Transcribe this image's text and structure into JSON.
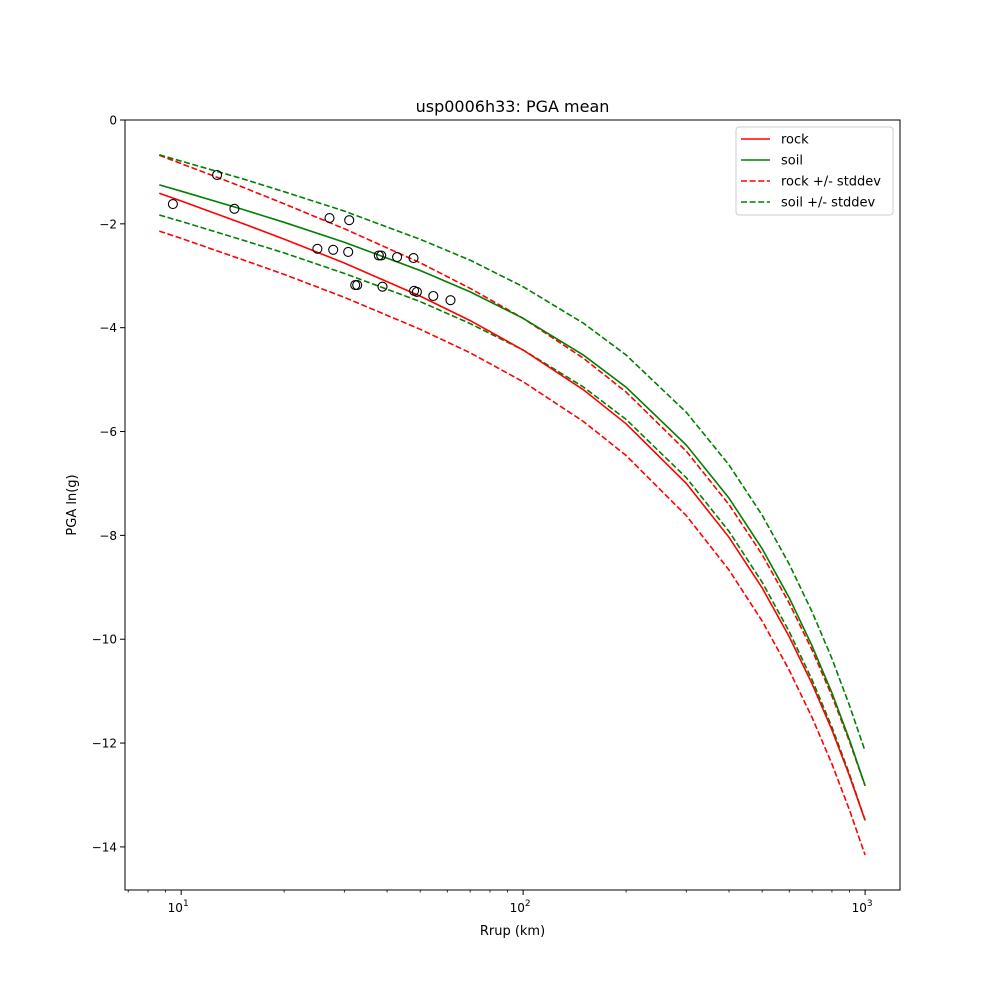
{
  "chart_data": {
    "type": "line",
    "title": "usp0006h33: PGA mean",
    "xlabel": "Rrup (km)",
    "ylabel": "PGA ln(g)",
    "xscale": "log",
    "xlim": [
      6.85,
      1265
    ],
    "ylim": [
      -14.83,
      0
    ],
    "grid": false,
    "legend_placement": "top-right",
    "x_ticks": [
      {
        "value": 10,
        "base": "10",
        "exp": "1"
      },
      {
        "value": 100,
        "base": "10",
        "exp": "2"
      },
      {
        "value": 1000,
        "base": "10",
        "exp": "3"
      }
    ],
    "y_ticks": [
      {
        "value": 0,
        "label": "0"
      },
      {
        "value": -2,
        "label": "−2"
      },
      {
        "value": -4,
        "label": "−4"
      },
      {
        "value": -6,
        "label": "−6"
      },
      {
        "value": -8,
        "label": "−8"
      },
      {
        "value": -10,
        "label": "−10"
      },
      {
        "value": -12,
        "label": "−12"
      },
      {
        "value": -14,
        "label": "−14"
      }
    ],
    "x": [
      8.63,
      10,
      15,
      20,
      30,
      50,
      70,
      100,
      150,
      200,
      300,
      400,
      500,
      600,
      700,
      800,
      900,
      1000
    ],
    "series": [
      {
        "name": "rock",
        "color": "#ff0000",
        "values": [
          -1.41,
          -1.56,
          -1.983,
          -2.294,
          -2.754,
          -3.391,
          -3.863,
          -4.43,
          -5.197,
          -5.851,
          -6.999,
          -8.037,
          -9.012,
          -9.949,
          -10.86,
          -11.75,
          -12.626,
          -13.49
        ],
        "stddev": [
          0.73,
          0.72,
          0.7,
          0.68,
          0.66,
          0.64,
          0.62,
          0.61,
          0.61,
          0.61,
          0.62,
          0.63,
          0.64,
          0.645,
          0.65,
          0.655,
          0.66,
          0.665
        ]
      },
      {
        "name": "soil",
        "color": "#008000",
        "values": [
          -1.25,
          -1.372,
          -1.715,
          -1.97,
          -2.354,
          -2.898,
          -3.311,
          -3.82,
          -4.528,
          -5.147,
          -6.259,
          -7.283,
          -8.258,
          -9.203,
          -10.128,
          -11.036,
          -11.933,
          -12.82
        ],
        "stddev": [
          0.58,
          0.58,
          0.59,
          0.59,
          0.6,
          0.6,
          0.61,
          0.61,
          0.615,
          0.62,
          0.63,
          0.64,
          0.645,
          0.65,
          0.655,
          0.66,
          0.66,
          0.665
        ]
      }
    ],
    "observations": {
      "name": "observed",
      "points": [
        [
          9.46,
          -1.62
        ],
        [
          12.74,
          -1.06
        ],
        [
          14.31,
          -1.71
        ],
        [
          25.03,
          -2.48
        ],
        [
          27.14,
          -1.89
        ],
        [
          27.83,
          -2.5
        ],
        [
          30.99,
          -1.93
        ],
        [
          30.78,
          -2.54
        ],
        [
          32.28,
          -3.18
        ],
        [
          32.71,
          -3.18
        ],
        [
          37.84,
          -2.61
        ],
        [
          38.44,
          -2.61
        ],
        [
          38.8,
          -3.21
        ],
        [
          42.8,
          -2.64
        ],
        [
          47.8,
          -2.66
        ],
        [
          48.0,
          -3.29
        ],
        [
          48.9,
          -3.31
        ],
        [
          54.6,
          -3.39
        ],
        [
          61.3,
          -3.47
        ]
      ]
    },
    "legend": [
      {
        "label": "rock",
        "color": "#ff0000",
        "style": "solid"
      },
      {
        "label": "soil",
        "color": "#008000",
        "style": "solid"
      },
      {
        "label": "rock +/- stddev",
        "color": "#ff0000",
        "style": "dashed"
      },
      {
        "label": "soil +/- stddev",
        "color": "#008000",
        "style": "dashed"
      }
    ]
  }
}
